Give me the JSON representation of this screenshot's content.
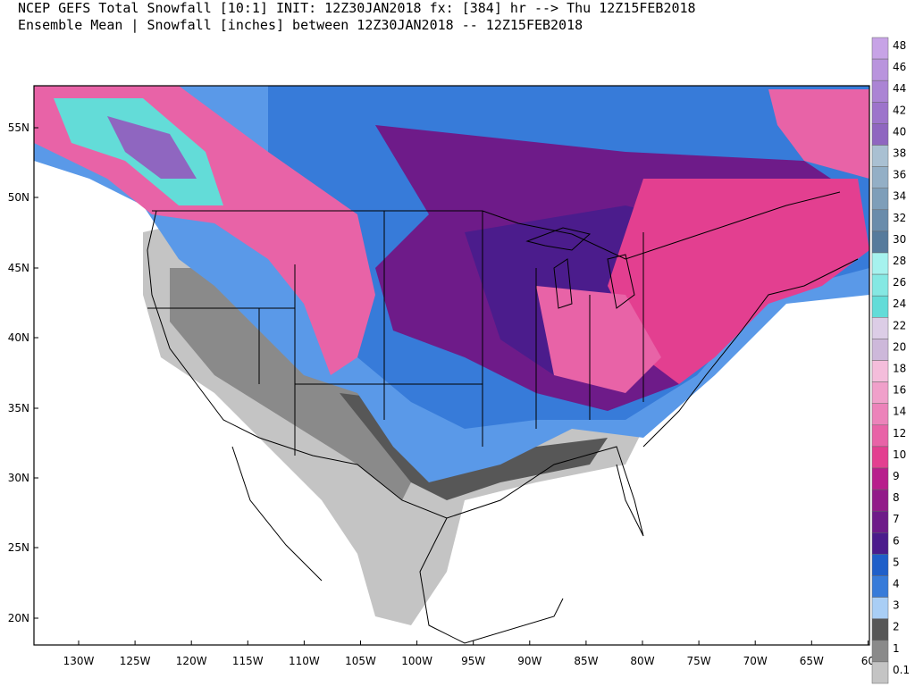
{
  "header": {
    "title": "NCEP GEFS Total Snowfall [10:1] INIT: 12Z30JAN2018 fx: [384] hr --> Thu 12Z15FEB2018",
    "subtitle": "Ensemble Mean | Snowfall [inches] between 12Z30JAN2018 -- 12Z15FEB2018"
  },
  "map": {
    "lat_labels": [
      "55N",
      "50N",
      "45N",
      "40N",
      "35N",
      "30N",
      "25N",
      "20N"
    ],
    "lon_labels": [
      "130W",
      "125W",
      "120W",
      "115W",
      "110W",
      "105W",
      "100W",
      "95W",
      "90W",
      "85W",
      "80W",
      "75W",
      "70W",
      "65W",
      "60"
    ]
  },
  "colorbar": {
    "levels": [
      {
        "label": 48,
        "color": "#c7a3e6"
      },
      {
        "label": 46,
        "color": "#b994dd"
      },
      {
        "label": 44,
        "color": "#ab84d4"
      },
      {
        "label": 42,
        "color": "#9d74cb"
      },
      {
        "label": 40,
        "color": "#8f66c0"
      },
      {
        "label": 38,
        "color": "#a9c0d2"
      },
      {
        "label": 36,
        "color": "#93afc6"
      },
      {
        "label": 34,
        "color": "#7e9eb9"
      },
      {
        "label": 32,
        "color": "#6a8cab"
      },
      {
        "label": 30,
        "color": "#577b9c"
      },
      {
        "label": 28,
        "color": "#a6f2ee"
      },
      {
        "label": 26,
        "color": "#85e8e3"
      },
      {
        "label": 24,
        "color": "#63dcd8"
      },
      {
        "label": 22,
        "color": "#dccde6"
      },
      {
        "label": 20,
        "color": "#cdb8da"
      },
      {
        "label": 18,
        "color": "#f4bddb"
      },
      {
        "label": 16,
        "color": "#f0a0ca"
      },
      {
        "label": 14,
        "color": "#ec83ba"
      },
      {
        "label": 12,
        "color": "#e863a7"
      },
      {
        "label": 10,
        "color": "#e33f90"
      },
      {
        "label": 9,
        "color": "#b81e8c"
      },
      {
        "label": 8,
        "color": "#921b89"
      },
      {
        "label": 7,
        "color": "#6e1b89"
      },
      {
        "label": 6,
        "color": "#4b1c8c"
      },
      {
        "label": 5,
        "color": "#1f5fc9"
      },
      {
        "label": 4,
        "color": "#377bd9"
      },
      {
        "label": 3,
        "color": "#a9cef5"
      },
      {
        "label": 2,
        "color": "#575757"
      },
      {
        "label": 1,
        "color": "#8a8a8a"
      },
      {
        "label": 0.1,
        "color": "#c4c4c4"
      }
    ]
  }
}
